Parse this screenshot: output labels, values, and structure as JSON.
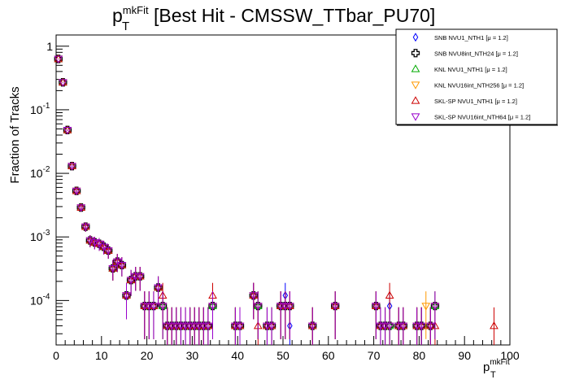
{
  "title": {
    "main": "p",
    "sup": "mkFit",
    "sub": "T",
    "rest": " [Best Hit - CMSSW_TTbar_PU70]"
  },
  "chart_data": {
    "type": "scatter",
    "xlabel": {
      "main": "p",
      "sup": "mkFit",
      "sub": "T"
    },
    "ylabel": "Fraction of Tracks",
    "xlim": [
      0,
      100
    ],
    "ylim": [
      2e-05,
      1.5
    ],
    "y_scale": "log",
    "grid": false,
    "legend_position": "top-right",
    "x_ticks": [
      0,
      10,
      20,
      30,
      40,
      50,
      60,
      70,
      80,
      90,
      100
    ],
    "y_ticks": [
      {
        "v": 0.0001,
        "base": "10",
        "exp": "-4"
      },
      {
        "v": 0.001,
        "base": "10",
        "exp": "-3"
      },
      {
        "v": 0.01,
        "base": "10",
        "exp": "-2"
      },
      {
        "v": 0.1,
        "base": "10",
        "exp": "-1"
      },
      {
        "v": 1,
        "base": "1",
        "exp": ""
      }
    ],
    "series": [
      {
        "name": "SNB NVU1_NTH1 [μ =  1.2]",
        "marker": "diamond",
        "color": "#0000ff",
        "x": [
          0.5,
          1.5,
          2.5,
          3.5,
          4.5,
          5.5,
          6.5,
          7.5,
          8.5,
          9.5,
          10.5,
          11.5,
          12.5,
          13.5,
          14.5,
          15.5,
          16.5,
          17.5,
          18.5,
          19.5,
          20.5,
          21.5,
          22.5,
          23.5,
          24.5,
          25.5,
          26.5,
          27.5,
          28.5,
          29.5,
          30.5,
          31.5,
          32.5,
          33.5,
          34.5,
          39.5,
          40.5,
          43.5,
          44.5,
          46.5,
          47.5,
          49.5,
          50.5,
          51.5,
          56.5,
          61.5,
          70.5,
          71.5,
          72.5,
          73.5,
          75.5,
          76.5,
          79.5,
          80.5,
          82.5,
          83.5
        ],
        "y": [
          0.63,
          0.27,
          0.048,
          0.013,
          0.0053,
          0.0029,
          0.00145,
          0.00088,
          0.00082,
          0.00078,
          0.0007,
          0.00061,
          0.00032,
          0.00041,
          0.00036,
          0.00012,
          0.00021,
          0.00024,
          0.00024,
          8.2e-05,
          8.2e-05,
          8.2e-05,
          0.00016,
          8.2e-05,
          4e-05,
          4e-05,
          4e-05,
          4e-05,
          4e-05,
          4e-05,
          4e-05,
          4e-05,
          4e-05,
          4e-05,
          8.2e-05,
          4e-05,
          4e-05,
          0.00012,
          8.2e-05,
          4e-05,
          4e-05,
          8.2e-05,
          0.00012,
          4e-05,
          4e-05,
          8.2e-05,
          8.2e-05,
          4e-05,
          4e-05,
          8.2e-05,
          4e-05,
          4e-05,
          4e-05,
          4e-05,
          4e-05,
          8.2e-05
        ]
      },
      {
        "name": "SNB NVU8int_NTH24 [μ =  1.2]",
        "marker": "cross",
        "color": "#000000",
        "x": [
          0.5,
          1.5,
          2.5,
          3.5,
          4.5,
          5.5,
          6.5,
          7.5,
          8.5,
          9.5,
          10.5,
          11.5,
          12.5,
          13.5,
          14.5,
          15.5,
          16.5,
          17.5,
          18.5,
          19.5,
          20.5,
          21.5,
          22.5,
          23.5,
          24.5,
          25.5,
          26.5,
          27.5,
          28.5,
          29.5,
          30.5,
          31.5,
          32.5,
          33.5,
          34.5,
          39.5,
          40.5,
          43.5,
          44.5,
          46.5,
          47.5,
          49.5,
          50.5,
          51.5,
          56.5,
          61.5,
          70.5,
          71.5,
          72.5,
          73.5,
          75.5,
          76.5,
          79.5,
          80.5,
          82.5,
          83.5
        ],
        "y": [
          0.63,
          0.27,
          0.048,
          0.013,
          0.0053,
          0.0029,
          0.00145,
          0.00088,
          0.00082,
          0.00078,
          0.0007,
          0.00061,
          0.00032,
          0.00041,
          0.00036,
          0.00012,
          0.00021,
          0.00024,
          0.00024,
          8.2e-05,
          8.2e-05,
          8.2e-05,
          0.00016,
          8.2e-05,
          4e-05,
          4e-05,
          4e-05,
          4e-05,
          4e-05,
          4e-05,
          4e-05,
          4e-05,
          4e-05,
          4e-05,
          8.2e-05,
          4e-05,
          4e-05,
          0.00012,
          8.2e-05,
          4e-05,
          4e-05,
          8.2e-05,
          8.2e-05,
          8.2e-05,
          4e-05,
          8.2e-05,
          8.2e-05,
          4e-05,
          4e-05,
          4e-05,
          4e-05,
          4e-05,
          4e-05,
          4e-05,
          4e-05,
          8.2e-05
        ]
      },
      {
        "name": "KNL NVU1_NTH1 [μ =  1.2]",
        "marker": "triangle-up",
        "color": "#00aa00",
        "x": [
          0.5,
          1.5,
          2.5,
          3.5,
          4.5,
          5.5,
          6.5,
          7.5,
          8.5,
          9.5,
          10.5,
          11.5,
          12.5,
          13.5,
          14.5,
          15.5,
          16.5,
          17.5,
          18.5,
          19.5,
          20.5,
          21.5,
          22.5,
          23.5,
          24.5,
          25.5,
          26.5,
          27.5,
          28.5,
          29.5,
          30.5,
          31.5,
          32.5,
          33.5,
          34.5,
          39.5,
          40.5,
          43.5,
          44.5,
          46.5,
          47.5,
          49.5,
          50.5,
          51.5,
          56.5,
          61.5,
          70.5,
          71.5,
          72.5,
          73.5,
          75.5,
          76.5,
          79.5,
          80.5,
          82.5,
          83.5
        ],
        "y": [
          0.63,
          0.27,
          0.048,
          0.013,
          0.0053,
          0.0029,
          0.00145,
          0.00088,
          0.00082,
          0.00078,
          0.0007,
          0.00061,
          0.00032,
          0.00041,
          0.00036,
          0.00012,
          0.00021,
          0.00024,
          0.00024,
          8.2e-05,
          8.2e-05,
          8.2e-05,
          0.00016,
          8.2e-05,
          4e-05,
          4e-05,
          4e-05,
          4e-05,
          4e-05,
          4e-05,
          4e-05,
          4e-05,
          4e-05,
          4e-05,
          8.2e-05,
          4e-05,
          4e-05,
          0.00012,
          8.2e-05,
          4e-05,
          4e-05,
          8.2e-05,
          8.2e-05,
          8.2e-05,
          4e-05,
          8.2e-05,
          8.2e-05,
          4e-05,
          4e-05,
          4e-05,
          4e-05,
          4e-05,
          4e-05,
          4e-05,
          4e-05,
          8.2e-05
        ]
      },
      {
        "name": "KNL NVU16int_NTH256 [μ =  1.2]",
        "marker": "triangle-down",
        "color": "#ff9900",
        "x": [
          0.5,
          1.5,
          2.5,
          3.5,
          4.5,
          5.5,
          6.5,
          7.5,
          8.5,
          9.5,
          10.5,
          11.5,
          12.5,
          13.5,
          14.5,
          15.5,
          16.5,
          17.5,
          18.5,
          19.5,
          20.5,
          21.5,
          22.5,
          23.5,
          24.5,
          25.5,
          26.5,
          27.5,
          28.5,
          29.5,
          30.5,
          31.5,
          32.5,
          33.5,
          34.5,
          39.5,
          40.5,
          43.5,
          44.5,
          46.5,
          47.5,
          49.5,
          50.5,
          51.5,
          56.5,
          61.5,
          70.5,
          71.5,
          72.5,
          73.5,
          75.5,
          76.5,
          79.5,
          81.5,
          82.5,
          83.5
        ],
        "y": [
          0.63,
          0.27,
          0.048,
          0.013,
          0.0053,
          0.0029,
          0.00145,
          0.00088,
          0.00082,
          0.00078,
          0.0007,
          0.00061,
          0.00032,
          0.00041,
          0.00036,
          0.00012,
          0.00021,
          0.00024,
          0.00024,
          8.2e-05,
          8.2e-05,
          8.2e-05,
          0.00016,
          8.2e-05,
          4e-05,
          4e-05,
          4e-05,
          4e-05,
          4e-05,
          4e-05,
          4e-05,
          4e-05,
          4e-05,
          4e-05,
          8.2e-05,
          4e-05,
          4e-05,
          0.00012,
          8.2e-05,
          4e-05,
          4e-05,
          8.2e-05,
          8.2e-05,
          8.2e-05,
          4e-05,
          8.2e-05,
          8.2e-05,
          4e-05,
          4e-05,
          4e-05,
          4e-05,
          4e-05,
          4e-05,
          8.2e-05,
          4e-05,
          8.2e-05
        ]
      },
      {
        "name": "SKL-SP NVU1_NTH1 [μ =  1.2]",
        "marker": "triangle-up",
        "color": "#cc0000",
        "x": [
          0.5,
          1.5,
          2.5,
          3.5,
          4.5,
          5.5,
          6.5,
          7.5,
          8.5,
          9.5,
          10.5,
          11.5,
          12.5,
          13.5,
          14.5,
          15.5,
          16.5,
          17.5,
          18.5,
          19.5,
          20.5,
          21.5,
          22.5,
          23.5,
          24.5,
          25.5,
          26.5,
          27.5,
          28.5,
          29.5,
          30.5,
          31.5,
          32.5,
          33.5,
          34.5,
          39.5,
          40.5,
          43.5,
          44.5,
          46.5,
          47.5,
          49.5,
          50.5,
          51.5,
          56.5,
          61.5,
          70.5,
          71.5,
          72.5,
          73.5,
          75.5,
          76.5,
          79.5,
          80.5,
          82.5,
          83.5,
          96.5
        ],
        "y": [
          0.63,
          0.27,
          0.048,
          0.013,
          0.0053,
          0.0029,
          0.00145,
          0.00088,
          0.00082,
          0.00078,
          0.0007,
          0.00061,
          0.00032,
          0.00041,
          0.00036,
          0.00012,
          0.00021,
          0.00024,
          0.00024,
          8.2e-05,
          8.2e-05,
          8.2e-05,
          0.00016,
          0.00012,
          4e-05,
          4e-05,
          4e-05,
          4e-05,
          4e-05,
          4e-05,
          4e-05,
          4e-05,
          4e-05,
          4e-05,
          0.00012,
          4e-05,
          4e-05,
          0.00012,
          4e-05,
          4e-05,
          4e-05,
          8.2e-05,
          8.2e-05,
          8.2e-05,
          4e-05,
          8.2e-05,
          8.2e-05,
          4e-05,
          4e-05,
          0.00012,
          4e-05,
          4e-05,
          4e-05,
          4e-05,
          4e-05,
          4e-05,
          4e-05
        ]
      },
      {
        "name": "SKL-SP NVU16int_NTH64 [μ =  1.2]",
        "marker": "triangle-down",
        "color": "#9900cc",
        "x": [
          0.5,
          1.5,
          2.5,
          3.5,
          4.5,
          5.5,
          6.5,
          7.5,
          8.5,
          9.5,
          10.5,
          11.5,
          12.5,
          13.5,
          14.5,
          15.5,
          16.5,
          17.5,
          18.5,
          19.5,
          20.5,
          21.5,
          22.5,
          23.5,
          24.5,
          25.5,
          26.5,
          27.5,
          28.5,
          29.5,
          30.5,
          31.5,
          32.5,
          33.5,
          34.5,
          39.5,
          40.5,
          43.5,
          44.5,
          46.5,
          47.5,
          49.5,
          50.5,
          51.5,
          56.5,
          61.5,
          70.5,
          71.5,
          72.5,
          73.5,
          75.5,
          76.5,
          79.5,
          80.5,
          82.5,
          83.5
        ],
        "y": [
          0.63,
          0.27,
          0.048,
          0.013,
          0.0053,
          0.0029,
          0.00145,
          0.00088,
          0.00082,
          0.00078,
          0.0007,
          0.00061,
          0.00032,
          0.00041,
          0.00036,
          0.00012,
          0.00021,
          0.00024,
          0.00024,
          8.2e-05,
          8.2e-05,
          8.2e-05,
          0.00016,
          8.2e-05,
          4e-05,
          4e-05,
          4e-05,
          4e-05,
          4e-05,
          4e-05,
          4e-05,
          4e-05,
          4e-05,
          4e-05,
          8.2e-05,
          4e-05,
          4e-05,
          0.00012,
          8.2e-05,
          4e-05,
          4e-05,
          8.2e-05,
          8.2e-05,
          8.2e-05,
          4e-05,
          8.2e-05,
          8.2e-05,
          4e-05,
          4e-05,
          4e-05,
          4e-05,
          4e-05,
          4e-05,
          4e-05,
          4e-05,
          8.2e-05
        ]
      }
    ]
  }
}
